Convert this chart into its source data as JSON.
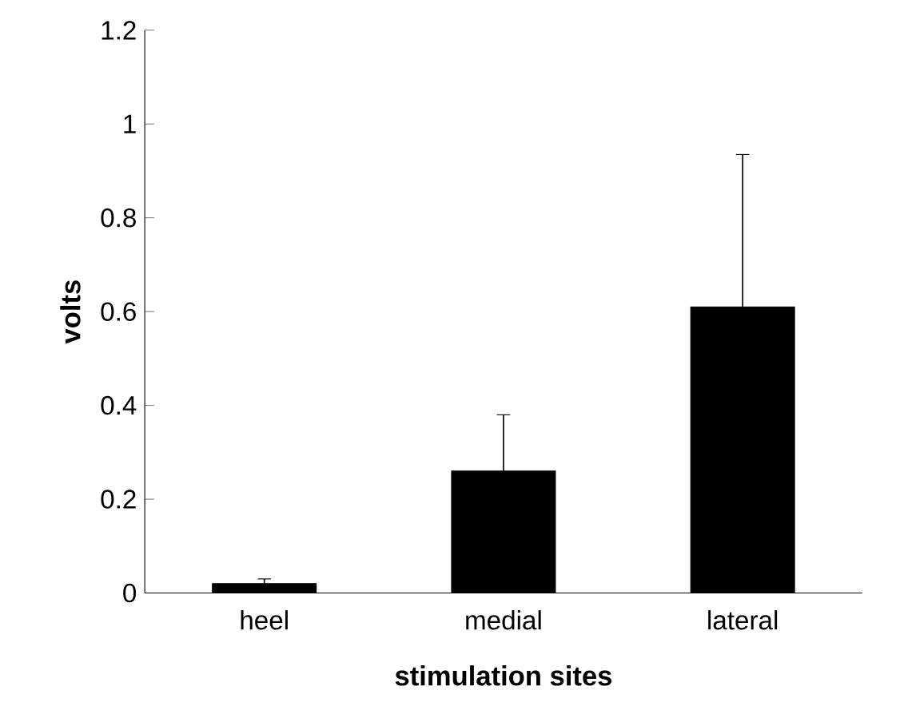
{
  "chart_data": {
    "type": "bar",
    "xlabel": "stimulation sites",
    "ylabel": "volts",
    "categories": [
      "heel",
      "medial",
      "lateral"
    ],
    "values": [
      0.02,
      0.26,
      0.61
    ],
    "errors": [
      0.01,
      0.12,
      0.325
    ],
    "color": "#000000",
    "ylim": [
      0,
      1.2
    ],
    "yticks": [
      0,
      0.2,
      0.4,
      0.6,
      0.8,
      1,
      1.2
    ],
    "grid": false
  }
}
